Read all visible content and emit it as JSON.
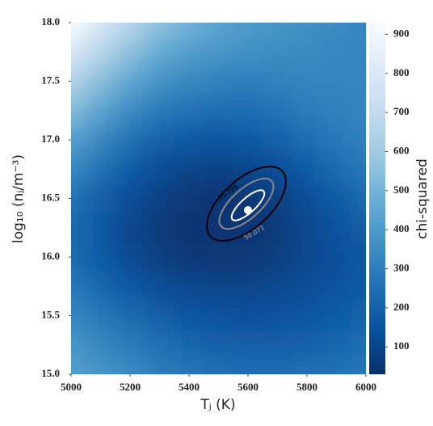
{
  "chart_data": {
    "type": "heatmap",
    "x_label": "Tⱼ (K)",
    "y_label": "log₁₀ (nⱼ/m⁻³)",
    "colorbar_label": "chi-squared",
    "x": [
      5000,
      5100,
      5200,
      5300,
      5400,
      5500,
      5600,
      5700,
      5800,
      5900,
      6000
    ],
    "y": [
      15.0,
      15.25,
      15.5,
      15.75,
      16.0,
      16.25,
      16.5,
      16.75,
      17.0,
      17.25,
      17.5,
      17.75,
      18.0
    ],
    "z": [
      [
        420,
        380,
        340,
        300,
        270,
        250,
        240,
        240,
        250,
        260,
        280
      ],
      [
        380,
        330,
        290,
        250,
        220,
        200,
        190,
        190,
        200,
        220,
        240
      ],
      [
        330,
        280,
        230,
        190,
        160,
        150,
        140,
        150,
        160,
        180,
        210
      ],
      [
        280,
        220,
        170,
        130,
        110,
        100,
        100,
        110,
        130,
        150,
        180
      ],
      [
        240,
        180,
        120,
        80,
        60,
        55,
        60,
        80,
        110,
        140,
        170
      ],
      [
        230,
        170,
        110,
        70,
        50,
        45,
        48,
        70,
        110,
        150,
        190
      ],
      [
        260,
        190,
        130,
        85,
        60,
        50,
        55,
        80,
        130,
        180,
        230
      ],
      [
        330,
        250,
        180,
        130,
        100,
        90,
        100,
        130,
        180,
        230,
        280
      ],
      [
        420,
        330,
        250,
        200,
        170,
        160,
        170,
        200,
        240,
        280,
        310
      ],
      [
        530,
        430,
        340,
        280,
        250,
        240,
        240,
        260,
        290,
        310,
        320
      ],
      [
        650,
        540,
        440,
        370,
        330,
        310,
        300,
        310,
        320,
        320,
        320
      ],
      [
        790,
        660,
        550,
        460,
        410,
        380,
        360,
        350,
        340,
        330,
        320
      ],
      [
        930,
        790,
        660,
        560,
        490,
        440,
        400,
        380,
        360,
        340,
        320
      ]
    ],
    "colormap": [
      "#08306b",
      "#08519c",
      "#2171b5",
      "#4292c6",
      "#6baed6",
      "#9ecae1",
      "#c6dbef",
      "#deebf7",
      "#f7fbff"
    ],
    "clim": [
      30,
      930
    ],
    "cticks": [
      100,
      200,
      300,
      400,
      500,
      600,
      700,
      800,
      900
    ],
    "xlim": [
      5000,
      6000
    ],
    "xticks": [
      5000,
      5200,
      5400,
      5600,
      5800,
      6000
    ],
    "ylim": [
      15,
      18
    ],
    "yticks": [
      {
        "value": 15,
        "label": "15.0"
      },
      15.5,
      {
        "value": 16,
        "label": "16.0"
      },
      16.5,
      {
        "value": 17,
        "label": "17.0"
      },
      17.5,
      {
        "value": 18,
        "label": "18.0"
      }
    ],
    "contours": [
      {
        "level": 55.786,
        "color": "#000000"
      },
      {
        "level": 50.071,
        "color": "#888888"
      }
    ],
    "best_fit": {
      "x": 5600,
      "y": 16.4,
      "color": "#ffffff"
    }
  }
}
